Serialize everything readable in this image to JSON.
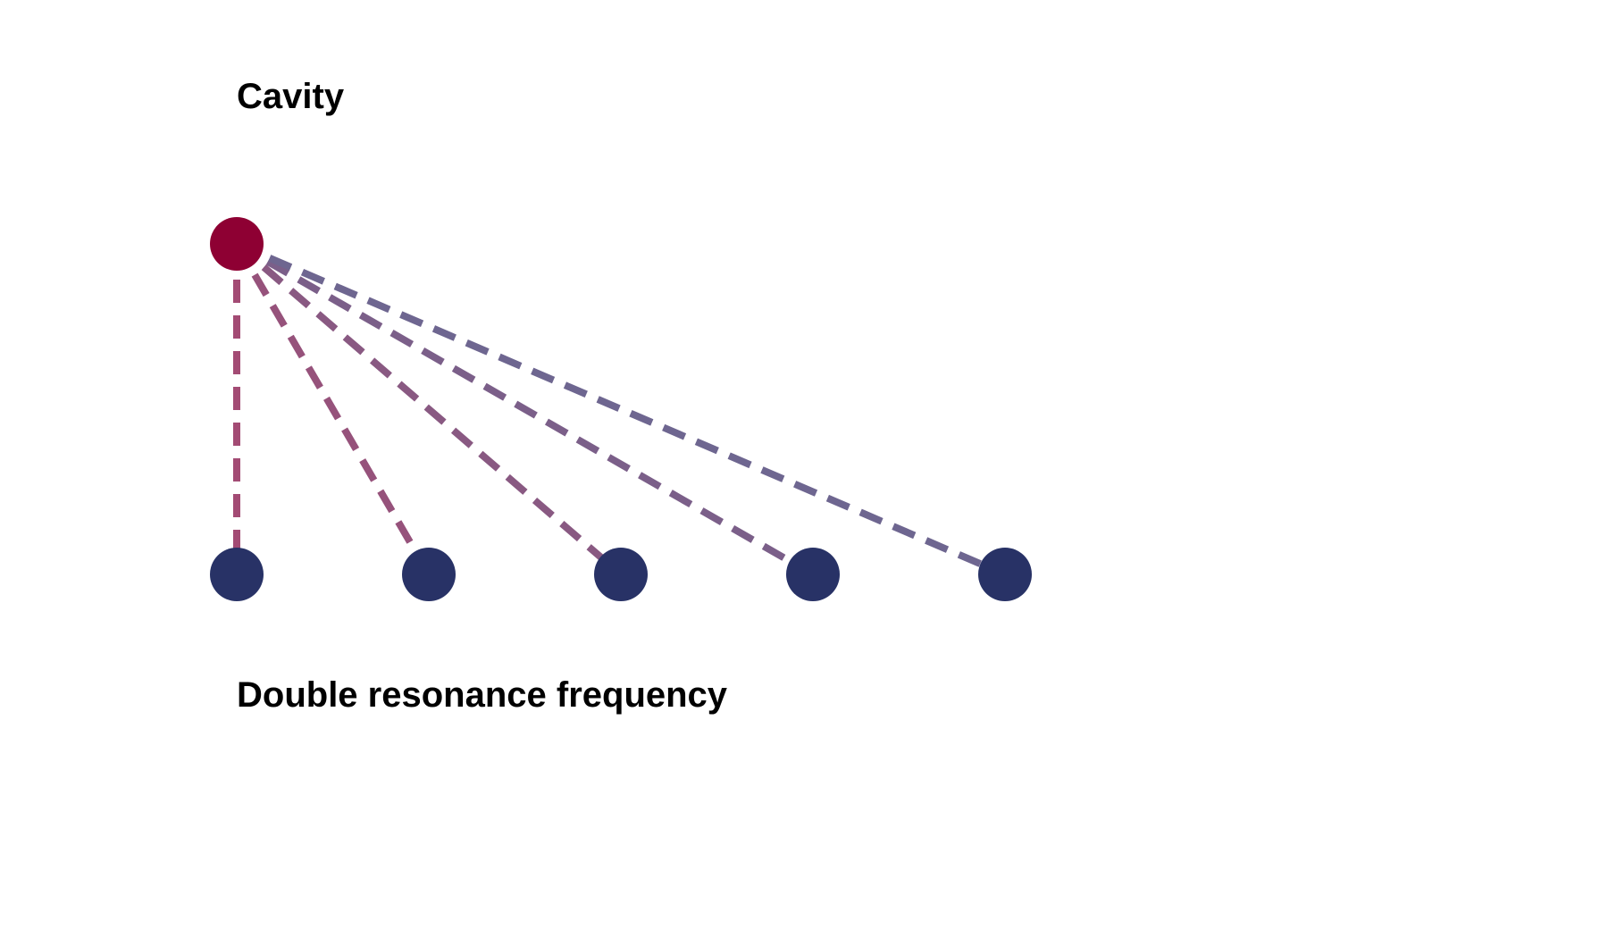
{
  "labels": {
    "top": "Cavity",
    "bottom": "Double resonance frequency"
  },
  "colors": {
    "source_node": "#8e0033",
    "target_node": "#283266",
    "edge_near": "#a34b74",
    "edge_far": "#6e6690",
    "background": "#ffffff"
  },
  "nodes": {
    "source": {
      "id": "cavity"
    },
    "targets": [
      {
        "id": "frequency-1"
      },
      {
        "id": "frequency-2"
      },
      {
        "id": "frequency-3"
      },
      {
        "id": "frequency-4"
      },
      {
        "id": "frequency-5"
      }
    ]
  },
  "edges": [
    {
      "from": "cavity",
      "to": "frequency-1",
      "style": "dashed"
    },
    {
      "from": "cavity",
      "to": "frequency-2",
      "style": "dashed"
    },
    {
      "from": "cavity",
      "to": "frequency-3",
      "style": "dashed"
    },
    {
      "from": "cavity",
      "to": "frequency-4",
      "style": "dashed"
    },
    {
      "from": "cavity",
      "to": "frequency-5",
      "style": "dashed"
    }
  ]
}
